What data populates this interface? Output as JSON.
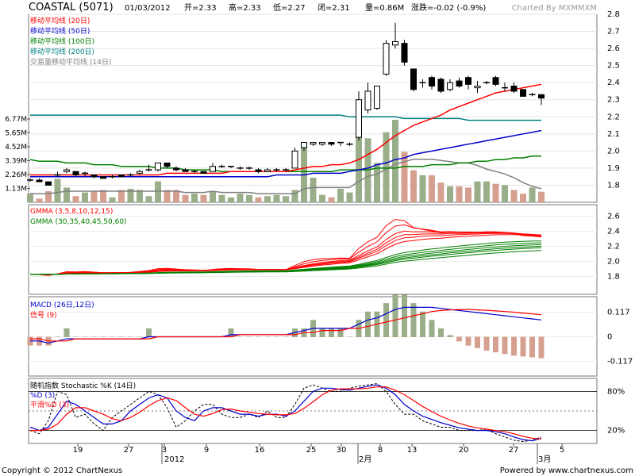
{
  "header": {
    "symbol": "COASTAL (5071)",
    "date": "01/03/2012",
    "open": "开=2.33",
    "high": "高=2.33",
    "low": "低=2.27",
    "close": "闭=2.31",
    "volume": "量=0.86M",
    "change": "涨跌=-0.02 (-0.9%)",
    "charted_by": "Charted By MXMMXM"
  },
  "legends": {
    "price": [
      {
        "label": "移动平均线 (20日)",
        "color": "#ff0000"
      },
      {
        "label": "移动平均线 (50日)",
        "color": "#0000cc"
      },
      {
        "label": "移动平均线 (100日)",
        "color": "#008000"
      },
      {
        "label": "移动平均线 (200日)",
        "color": "#008080"
      },
      {
        "label": "交易量移动平均线 (14日)",
        "color": "#808080"
      }
    ],
    "gmma": [
      {
        "label": "GMMA (3,5,8,10,12,15)",
        "color": "#ff0000"
      },
      {
        "label": "GMMA (30,35,40,45,50,60)",
        "color": "#008000"
      }
    ],
    "macd": [
      {
        "label": "MACD (26日,12日)",
        "color": "#0000cc"
      },
      {
        "label": "信号 (9)",
        "color": "#ff0000"
      }
    ],
    "stoch": [
      {
        "label": "随机指数 Stochastic %K (14日)",
        "color": "#000000"
      },
      {
        "label": "%D (3)",
        "color": "#0000cc"
      },
      {
        "label": "平滑%D (3)",
        "color": "#ff0000"
      }
    ]
  },
  "price_axis": [
    "2.8",
    "2.7",
    "2.6",
    "2.5",
    "2.4",
    "2.3",
    "2.2",
    "2.1",
    "2.0",
    "1.9",
    "1.8"
  ],
  "volume_axis": [
    "6.77M",
    "5.65M",
    "4.52M",
    "3.39M",
    "2.26M",
    "1.13M"
  ],
  "gmma_axis": [
    "2.6",
    "2.4",
    "2.2",
    "2.0",
    "1.8"
  ],
  "macd_axis": [
    "0.117",
    "0",
    "-0.117"
  ],
  "stoch_axis": [
    "80%",
    "20%"
  ],
  "x_ticks": [
    "19",
    "27",
    "3",
    "9",
    "16",
    "25",
    "30",
    "8",
    "13",
    "20",
    "27",
    "5"
  ],
  "x_sublabels": [
    "2012",
    "2月",
    "3月"
  ],
  "footer": {
    "copyright": "Copyright © 2012 ChartNexus",
    "powered": "Powered by www.chartnexus.com"
  },
  "colors": {
    "up_candle": "#ffffff",
    "down_candle": "#000000",
    "vol_up": "#9aae8a",
    "vol_down": "#d6a090",
    "grid": "#c8c8c8"
  },
  "chart_data": {
    "type": "candlestick",
    "date_labels": [
      "19",
      "27",
      "3",
      "9",
      "16",
      "25",
      "30",
      "8",
      "13",
      "20",
      "27",
      "5"
    ],
    "ohlc": [
      [
        1.83,
        1.84,
        1.82,
        1.83
      ],
      [
        1.83,
        1.84,
        1.82,
        1.82
      ],
      [
        1.82,
        1.82,
        1.8,
        1.8
      ],
      [
        1.86,
        1.88,
        1.85,
        1.86
      ],
      [
        1.88,
        1.9,
        1.87,
        1.89
      ],
      [
        1.88,
        1.88,
        1.85,
        1.86
      ],
      [
        1.87,
        1.88,
        1.85,
        1.87
      ],
      [
        1.86,
        1.86,
        1.84,
        1.85
      ],
      [
        1.85,
        1.85,
        1.84,
        1.84
      ],
      [
        1.85,
        1.86,
        1.84,
        1.85
      ],
      [
        1.86,
        1.86,
        1.85,
        1.85
      ],
      [
        1.86,
        1.87,
        1.85,
        1.86
      ],
      [
        1.87,
        1.89,
        1.86,
        1.88
      ],
      [
        1.89,
        1.92,
        1.88,
        1.89
      ],
      [
        1.89,
        1.93,
        1.88,
        1.93
      ],
      [
        1.93,
        1.93,
        1.9,
        1.91
      ],
      [
        1.9,
        1.91,
        1.88,
        1.89
      ],
      [
        1.89,
        1.9,
        1.88,
        1.88
      ],
      [
        1.88,
        1.89,
        1.87,
        1.88
      ],
      [
        1.88,
        1.88,
        1.87,
        1.87
      ],
      [
        1.88,
        1.93,
        1.88,
        1.91
      ],
      [
        1.91,
        1.92,
        1.9,
        1.91
      ],
      [
        1.91,
        1.91,
        1.9,
        1.91
      ],
      [
        1.9,
        1.91,
        1.89,
        1.9
      ],
      [
        1.9,
        1.91,
        1.89,
        1.9
      ],
      [
        1.89,
        1.9,
        1.87,
        1.88
      ],
      [
        1.88,
        1.9,
        1.88,
        1.89
      ],
      [
        1.89,
        1.9,
        1.88,
        1.89
      ],
      [
        1.89,
        1.9,
        1.88,
        1.89
      ],
      [
        1.9,
        2.02,
        1.9,
        2.0
      ],
      [
        2.02,
        2.05,
        2.0,
        2.05
      ],
      [
        2.04,
        2.05,
        2.03,
        2.05
      ],
      [
        2.04,
        2.05,
        2.03,
        2.05
      ],
      [
        2.05,
        2.05,
        2.03,
        2.04
      ],
      [
        2.05,
        2.05,
        2.03,
        2.05
      ],
      [
        2.04,
        2.05,
        2.03,
        2.04
      ],
      [
        2.08,
        2.35,
        2.06,
        2.3
      ],
      [
        2.24,
        2.4,
        2.22,
        2.35
      ],
      [
        2.25,
        2.38,
        2.24,
        2.38
      ],
      [
        2.45,
        2.65,
        2.44,
        2.63
      ],
      [
        2.62,
        2.75,
        2.6,
        2.64
      ],
      [
        2.63,
        2.65,
        2.5,
        2.52
      ],
      [
        2.48,
        2.48,
        2.35,
        2.36
      ],
      [
        2.4,
        2.42,
        2.37,
        2.4
      ],
      [
        2.43,
        2.44,
        2.36,
        2.38
      ],
      [
        2.42,
        2.43,
        2.34,
        2.35
      ],
      [
        2.36,
        2.42,
        2.35,
        2.4
      ],
      [
        2.41,
        2.43,
        2.37,
        2.38
      ],
      [
        2.43,
        2.44,
        2.36,
        2.39
      ],
      [
        2.37,
        2.41,
        2.34,
        2.38
      ],
      [
        2.4,
        2.41,
        2.39,
        2.4
      ],
      [
        2.43,
        2.44,
        2.38,
        2.39
      ],
      [
        2.37,
        2.4,
        2.35,
        2.37
      ],
      [
        2.38,
        2.4,
        2.34,
        2.35
      ],
      [
        2.36,
        2.36,
        2.32,
        2.32
      ],
      [
        2.33,
        2.34,
        2.32,
        2.33
      ],
      [
        2.33,
        2.33,
        2.27,
        2.31
      ]
    ],
    "volume_m": [
      0.7,
      0.3,
      0.9,
      1.9,
      1.2,
      0.5,
      0.8,
      0.9,
      1.0,
      0.4,
      1.0,
      1.1,
      1.0,
      0.5,
      1.7,
      1.0,
      1.0,
      0.6,
      0.7,
      0.6,
      0.9,
      0.6,
      0.4,
      0.7,
      0.6,
      0.4,
      0.5,
      0.6,
      0.5,
      1.0,
      4.6,
      2.0,
      0.6,
      0.4,
      1.1,
      0.8,
      6.8,
      5.2,
      3.2,
      5.7,
      6.7,
      4.1,
      2.6,
      2.2,
      2.2,
      1.6,
      1.3,
      1.3,
      1.2,
      1.7,
      1.7,
      1.5,
      1.4,
      1.0,
      0.7,
      1.2,
      0.86
    ],
    "ma20": [
      1.86,
      1.86,
      1.86,
      1.86,
      1.86,
      1.86,
      1.86,
      1.86,
      1.86,
      1.86,
      1.86,
      1.86,
      1.86,
      1.86,
      1.86,
      1.87,
      1.87,
      1.87,
      1.87,
      1.87,
      1.87,
      1.87,
      1.88,
      1.88,
      1.88,
      1.88,
      1.88,
      1.88,
      1.88,
      1.89,
      1.9,
      1.91,
      1.91,
      1.92,
      1.92,
      1.93,
      1.95,
      1.98,
      2.01,
      2.05,
      2.09,
      2.12,
      2.15,
      2.17,
      2.19,
      2.21,
      2.24,
      2.26,
      2.28,
      2.3,
      2.32,
      2.34,
      2.35,
      2.36,
      2.37,
      2.38,
      2.39
    ],
    "ma50": [
      1.85,
      1.85,
      1.85,
      1.85,
      1.85,
      1.85,
      1.85,
      1.85,
      1.85,
      1.85,
      1.85,
      1.85,
      1.85,
      1.85,
      1.85,
      1.85,
      1.85,
      1.85,
      1.85,
      1.85,
      1.85,
      1.85,
      1.85,
      1.85,
      1.85,
      1.85,
      1.85,
      1.86,
      1.86,
      1.86,
      1.86,
      1.87,
      1.87,
      1.87,
      1.87,
      1.88,
      1.89,
      1.9,
      1.92,
      1.93,
      1.95,
      1.96,
      1.98,
      1.99,
      2.0,
      2.01,
      2.02,
      2.03,
      2.04,
      2.05,
      2.06,
      2.07,
      2.08,
      2.09,
      2.1,
      2.11,
      2.12
    ],
    "ma100": [
      1.95,
      1.94,
      1.94,
      1.94,
      1.93,
      1.93,
      1.93,
      1.92,
      1.92,
      1.92,
      1.91,
      1.91,
      1.91,
      1.91,
      1.9,
      1.9,
      1.9,
      1.89,
      1.89,
      1.89,
      1.89,
      1.88,
      1.88,
      1.88,
      1.88,
      1.88,
      1.88,
      1.88,
      1.88,
      1.88,
      1.88,
      1.88,
      1.88,
      1.88,
      1.89,
      1.89,
      1.89,
      1.89,
      1.9,
      1.9,
      1.9,
      1.91,
      1.91,
      1.91,
      1.92,
      1.92,
      1.92,
      1.93,
      1.93,
      1.94,
      1.94,
      1.95,
      1.95,
      1.96,
      1.96,
      1.97,
      1.97
    ],
    "ma200": [
      2.21,
      2.21,
      2.21,
      2.21,
      2.21,
      2.21,
      2.21,
      2.21,
      2.21,
      2.21,
      2.21,
      2.21,
      2.21,
      2.21,
      2.21,
      2.21,
      2.21,
      2.21,
      2.21,
      2.21,
      2.21,
      2.21,
      2.21,
      2.21,
      2.21,
      2.21,
      2.21,
      2.21,
      2.21,
      2.21,
      2.21,
      2.21,
      2.21,
      2.21,
      2.21,
      2.2,
      2.2,
      2.2,
      2.2,
      2.2,
      2.2,
      2.19,
      2.19,
      2.19,
      2.19,
      2.19,
      2.19,
      2.19,
      2.18,
      2.18,
      2.18,
      2.18,
      2.18,
      2.18,
      2.18,
      2.18,
      2.18
    ],
    "vol_ma14": [
      0.7,
      0.7,
      0.7,
      0.8,
      0.9,
      0.9,
      0.9,
      0.9,
      0.9,
      0.9,
      0.9,
      0.9,
      0.9,
      0.9,
      0.9,
      0.9,
      0.9,
      0.8,
      0.8,
      0.8,
      0.9,
      0.8,
      0.8,
      0.8,
      0.8,
      0.7,
      0.7,
      0.7,
      0.7,
      0.7,
      1.1,
      1.2,
      1.2,
      1.2,
      1.2,
      1.2,
      1.7,
      2.1,
      2.3,
      2.7,
      3.1,
      3.3,
      3.5,
      3.5,
      3.5,
      3.4,
      3.3,
      3.2,
      3.2,
      3.0,
      2.7,
      2.5,
      2.3,
      2.0,
      1.6,
      1.3,
      1.1
    ],
    "macd": [
      -0.02,
      -0.02,
      -0.03,
      -0.02,
      -0.01,
      -0.01,
      -0.01,
      -0.01,
      -0.01,
      -0.01,
      -0.01,
      -0.01,
      -0.01,
      0.0,
      0.0,
      0.0,
      0.0,
      0.0,
      0.0,
      0.0,
      0.0,
      0.0,
      0.01,
      0.01,
      0.01,
      0.01,
      0.01,
      0.01,
      0.01,
      0.02,
      0.03,
      0.04,
      0.04,
      0.04,
      0.04,
      0.04,
      0.06,
      0.08,
      0.09,
      0.11,
      0.13,
      0.14,
      0.14,
      0.14,
      0.14,
      0.135,
      0.13,
      0.125,
      0.12,
      0.115,
      0.11,
      0.105,
      0.1,
      0.095,
      0.09,
      0.085,
      0.08
    ],
    "signal": [
      -0.01,
      -0.01,
      -0.02,
      -0.02,
      -0.02,
      -0.01,
      -0.01,
      -0.01,
      -0.01,
      -0.01,
      -0.01,
      -0.01,
      -0.01,
      -0.01,
      0.0,
      0.0,
      0.0,
      0.0,
      0.0,
      0.0,
      0.0,
      0.0,
      0.0,
      0.01,
      0.01,
      0.01,
      0.01,
      0.01,
      0.01,
      0.01,
      0.02,
      0.02,
      0.03,
      0.03,
      0.03,
      0.04,
      0.04,
      0.05,
      0.06,
      0.07,
      0.08,
      0.09,
      0.1,
      0.11,
      0.12,
      0.125,
      0.128,
      0.13,
      0.13,
      0.128,
      0.126,
      0.123,
      0.12,
      0.117,
      0.113,
      0.109,
      0.105
    ],
    "stoch_k": [
      20,
      15,
      35,
      80,
      75,
      40,
      45,
      30,
      20,
      40,
      50,
      60,
      70,
      80,
      75,
      55,
      25,
      35,
      50,
      60,
      60,
      45,
      40,
      40,
      45,
      40,
      50,
      40,
      40,
      60,
      85,
      90,
      85,
      80,
      80,
      85,
      88,
      90,
      92,
      80,
      60,
      45,
      45,
      35,
      30,
      25,
      25,
      20,
      20,
      20,
      22,
      15,
      10,
      5,
      3,
      5,
      10
    ],
    "stoch_d": [
      25,
      20,
      25,
      45,
      65,
      60,
      50,
      40,
      30,
      30,
      35,
      50,
      60,
      70,
      75,
      70,
      50,
      40,
      35,
      50,
      55,
      55,
      50,
      45,
      45,
      42,
      45,
      45,
      42,
      50,
      65,
      80,
      85,
      85,
      83,
      82,
      85,
      88,
      90,
      85,
      75,
      60,
      50,
      42,
      37,
      32,
      28,
      24,
      22,
      20,
      20,
      18,
      15,
      10,
      6,
      4,
      8
    ],
    "stoch_sd": [
      20,
      20,
      22,
      30,
      45,
      55,
      55,
      50,
      45,
      38,
      35,
      40,
      48,
      58,
      66,
      70,
      66,
      55,
      45,
      42,
      46,
      52,
      53,
      50,
      48,
      46,
      45,
      44,
      44,
      46,
      54,
      64,
      75,
      82,
      84,
      84,
      84,
      85,
      87,
      87,
      82,
      75,
      66,
      57,
      49,
      42,
      36,
      31,
      27,
      24,
      22,
      20,
      18,
      15,
      11,
      8,
      7
    ]
  }
}
